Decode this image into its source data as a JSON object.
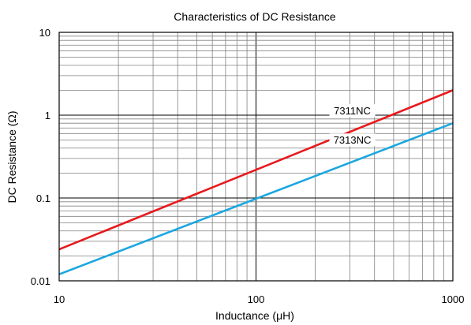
{
  "chart_data": {
    "type": "line",
    "title": "Characteristics of DC Resistance",
    "xlabel": "Inductance (μH)",
    "ylabel": "DC Resistance (Ω)",
    "x_scale": "log",
    "y_scale": "log",
    "xlim": [
      10,
      1000
    ],
    "ylim": [
      0.01,
      10
    ],
    "x_ticks": [
      10,
      100,
      1000
    ],
    "x_tick_labels": [
      "10",
      "100",
      "1000"
    ],
    "y_ticks": [
      0.01,
      0.1,
      1,
      10
    ],
    "y_tick_labels": [
      "0.01",
      "0.1",
      "1",
      "10"
    ],
    "grid": true,
    "series": [
      {
        "name": "7311NC",
        "color": "#e8191c",
        "x": [
          10,
          1000
        ],
        "y": [
          0.024,
          2.0
        ]
      },
      {
        "name": "7313NC",
        "color": "#1aa7e0",
        "x": [
          10,
          1000
        ],
        "y": [
          0.012,
          0.8
        ]
      }
    ]
  }
}
